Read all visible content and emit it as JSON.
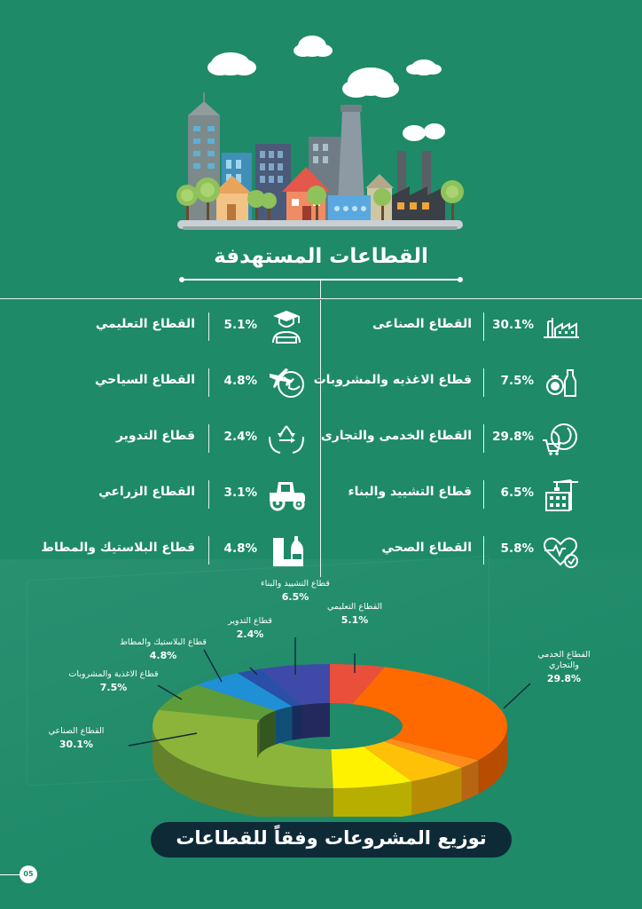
{
  "page": {
    "title": "القطاعات المستهدفة",
    "banner": "توزيع المشروعات وفقاً للقطاعات",
    "page_number": "05"
  },
  "sectors_right": [
    {
      "name": "القطاع الصناعى",
      "pct": "30.1%",
      "icon": "factory-icon"
    },
    {
      "name": "قطاع الاغذيه والمشروبات",
      "pct": "7.5%",
      "icon": "food-drink-icon"
    },
    {
      "name": "القطاع الخدمى والتجارى",
      "pct": "29.8%",
      "icon": "globe-cart-icon"
    },
    {
      "name": "قطاع التشييد والبناء",
      "pct": "6.5%",
      "icon": "crane-building-icon"
    },
    {
      "name": "القطاع الصحي",
      "pct": "5.8%",
      "icon": "heart-pulse-icon"
    }
  ],
  "sectors_left": [
    {
      "name": "القطاع التعليمي",
      "pct": "5.1%",
      "icon": "graduate-icon"
    },
    {
      "name": "القطاع السياحي",
      "pct": "4.8%",
      "icon": "plane-globe-icon"
    },
    {
      "name": "قطاع التدوير",
      "pct": "2.4%",
      "icon": "recycle-hands-icon"
    },
    {
      "name": "القطاع الزراعي",
      "pct": "3.1%",
      "icon": "tractor-icon"
    },
    {
      "name": "قطاع البلاستيك والمطاط",
      "pct": "4.8%",
      "icon": "boot-bottle-icon"
    }
  ],
  "chart_data": {
    "type": "pie",
    "style": "3d-donut",
    "title": "",
    "slices": [
      {
        "label": "القطاع التعليمي",
        "value": 5.1,
        "value_label": "5.1%",
        "color": "#ea4f3c"
      },
      {
        "label": "القطاع الخدمي والتجاري",
        "value": 29.8,
        "value_label": "29.8%",
        "color": "#ff6a00"
      },
      {
        "label": "",
        "value": 2.5,
        "value_label": "",
        "color": "#ff8c1a"
      },
      {
        "label": "",
        "value": 5.8,
        "value_label": "",
        "color": "#ffc107"
      },
      {
        "label": "",
        "value": 7.5,
        "value_label": "",
        "color": "#fff200"
      },
      {
        "label": "القطاع الصناعي",
        "value": 30.1,
        "value_label": "30.1%",
        "color": "#8cb43a"
      },
      {
        "label": "قطاع الاغذية والمشروبات",
        "value": 7.5,
        "value_label": "7.5%",
        "color": "#5e9c3a"
      },
      {
        "label": "قطاع البلاستيك والمطاط",
        "value": 4.8,
        "value_label": "4.8%",
        "color": "#1f8fd6"
      },
      {
        "label": "قطاع التدوير",
        "value": 2.4,
        "value_label": "2.4%",
        "color": "#2a4fa8"
      },
      {
        "label": "قطاع التشييد والبناء",
        "value": 6.5,
        "value_label": "6.5%",
        "color": "#3f4aa8"
      }
    ],
    "callouts": [
      {
        "name": "قطاع التشييد والبناء",
        "pct": "6.5%"
      },
      {
        "name": "القطاع التعليمي",
        "pct": "5.1%"
      },
      {
        "name": "قطاع التدوير",
        "pct": "2.4%"
      },
      {
        "name": "قطاع البلاستيك والمطاط",
        "pct": "4.8%"
      },
      {
        "name": "قطاع الاغذية والمشروبات",
        "pct": "7.5%"
      },
      {
        "name": "القطاع الصناعي",
        "pct": "30.1%"
      },
      {
        "name_lines": [
          "القطاع الخدمي",
          "والتجاري"
        ],
        "pct": "29.8%"
      }
    ]
  }
}
